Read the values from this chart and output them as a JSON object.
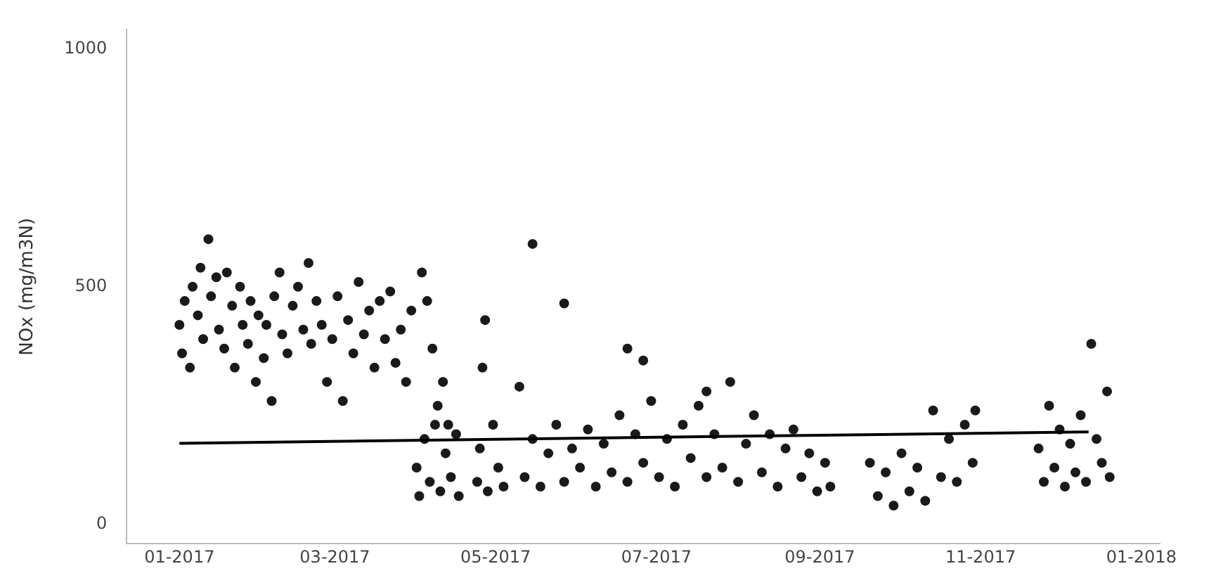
{
  "chart_data": {
    "type": "scatter",
    "ylabel": "NOx (mg/m3N)",
    "xlim": [
      "2016-12-12",
      "2018-01-08"
    ],
    "ylim": [
      -40,
      1040
    ],
    "xticks": [
      {
        "value": "2017-01-01",
        "label": "01-2017"
      },
      {
        "value": "2017-03-01",
        "label": "03-2017"
      },
      {
        "value": "2017-05-01",
        "label": "05-2017"
      },
      {
        "value": "2017-07-01",
        "label": "07-2017"
      },
      {
        "value": "2017-09-01",
        "label": "09-2017"
      },
      {
        "value": "2017-11-01",
        "label": "11-2017"
      },
      {
        "value": "2018-01-01",
        "label": "01-2018"
      }
    ],
    "yticks": [
      0,
      500,
      1000
    ],
    "grid": false,
    "legend": false,
    "marker": "circle",
    "series": [
      {
        "color": "#1a1a1a",
        "x": [
          "2017-01-01",
          "2017-01-02",
          "2017-01-03",
          "2017-01-05",
          "2017-01-06",
          "2017-01-08",
          "2017-01-09",
          "2017-01-10",
          "2017-01-12",
          "2017-01-13",
          "2017-01-15",
          "2017-01-16",
          "2017-01-18",
          "2017-01-19",
          "2017-01-21",
          "2017-01-22",
          "2017-01-24",
          "2017-01-25",
          "2017-01-27",
          "2017-01-28",
          "2017-01-30",
          "2017-01-31",
          "2017-02-02",
          "2017-02-03",
          "2017-02-05",
          "2017-02-06",
          "2017-02-08",
          "2017-02-09",
          "2017-02-11",
          "2017-02-13",
          "2017-02-15",
          "2017-02-17",
          "2017-02-19",
          "2017-02-20",
          "2017-02-22",
          "2017-02-24",
          "2017-02-26",
          "2017-02-28",
          "2017-03-02",
          "2017-03-04",
          "2017-03-06",
          "2017-03-08",
          "2017-03-10",
          "2017-03-12",
          "2017-03-14",
          "2017-03-16",
          "2017-03-18",
          "2017-03-20",
          "2017-03-22",
          "2017-03-24",
          "2017-03-26",
          "2017-03-28",
          "2017-03-30",
          "2017-04-03",
          "2017-04-05",
          "2017-04-07",
          "2017-04-09",
          "2017-04-11",
          "2017-04-13",
          "2017-04-01",
          "2017-04-02",
          "2017-04-04",
          "2017-04-06",
          "2017-04-08",
          "2017-04-10",
          "2017-04-12",
          "2017-04-14",
          "2017-04-16",
          "2017-04-17",
          "2017-04-26",
          "2017-04-27",
          "2017-04-24",
          "2017-04-25",
          "2017-04-28",
          "2017-04-30",
          "2017-05-02",
          "2017-05-04",
          "2017-05-10",
          "2017-05-15",
          "2017-05-27",
          "2017-05-12",
          "2017-05-15",
          "2017-05-18",
          "2017-05-21",
          "2017-05-24",
          "2017-05-27",
          "2017-05-30",
          "2017-06-02",
          "2017-06-05",
          "2017-06-08",
          "2017-06-11",
          "2017-06-14",
          "2017-06-17",
          "2017-06-20",
          "2017-06-23",
          "2017-06-26",
          "2017-06-29",
          "2017-07-02",
          "2017-07-05",
          "2017-07-08",
          "2017-07-11",
          "2017-07-14",
          "2017-07-17",
          "2017-07-20",
          "2017-07-23",
          "2017-07-26",
          "2017-07-29",
          "2017-08-01",
          "2017-08-04",
          "2017-08-07",
          "2017-08-10",
          "2017-08-13",
          "2017-08-16",
          "2017-08-19",
          "2017-08-22",
          "2017-08-25",
          "2017-08-28",
          "2017-08-31",
          "2017-09-03",
          "2017-09-05",
          "2017-06-20",
          "2017-06-26",
          "2017-07-20",
          "2017-09-20",
          "2017-09-23",
          "2017-09-26",
          "2017-09-29",
          "2017-10-02",
          "2017-10-05",
          "2017-10-08",
          "2017-10-11",
          "2017-10-14",
          "2017-10-17",
          "2017-10-20",
          "2017-10-23",
          "2017-10-26",
          "2017-10-29",
          "2017-10-30",
          "2017-11-23",
          "2017-11-25",
          "2017-11-27",
          "2017-11-29",
          "2017-12-01",
          "2017-12-03",
          "2017-12-05",
          "2017-12-07",
          "2017-12-09",
          "2017-12-11",
          "2017-12-13",
          "2017-12-15",
          "2017-12-17",
          "2017-12-19",
          "2017-12-20"
        ],
        "values": [
          420,
          360,
          470,
          330,
          500,
          440,
          540,
          390,
          600,
          480,
          520,
          410,
          370,
          530,
          460,
          330,
          500,
          420,
          380,
          470,
          300,
          440,
          350,
          420,
          260,
          480,
          530,
          400,
          360,
          460,
          500,
          410,
          550,
          380,
          470,
          420,
          300,
          390,
          480,
          260,
          430,
          360,
          510,
          400,
          450,
          330,
          470,
          390,
          490,
          340,
          410,
          300,
          450,
          530,
          470,
          370,
          250,
          300,
          210,
          120,
          60,
          180,
          90,
          210,
          70,
          150,
          100,
          190,
          60,
          330,
          430,
          90,
          160,
          70,
          210,
          120,
          80,
          290,
          590,
          465,
          100,
          180,
          80,
          150,
          210,
          90,
          160,
          120,
          200,
          80,
          170,
          110,
          230,
          90,
          190,
          130,
          260,
          100,
          180,
          80,
          210,
          140,
          250,
          100,
          190,
          120,
          300,
          90,
          170,
          230,
          110,
          190,
          80,
          160,
          200,
          100,
          150,
          70,
          130,
          80,
          370,
          345,
          280,
          130,
          60,
          110,
          40,
          150,
          70,
          120,
          50,
          240,
          100,
          180,
          90,
          210,
          130,
          240,
          160,
          90,
          250,
          120,
          200,
          80,
          170,
          110,
          230,
          90,
          380,
          180,
          130,
          280,
          100
        ]
      },
      {
        "type": "line",
        "color": "#000000",
        "marker": "none",
        "x": [
          "2017-01-01",
          "2017-12-12"
        ],
        "values": [
          171,
          195
        ]
      }
    ]
  }
}
